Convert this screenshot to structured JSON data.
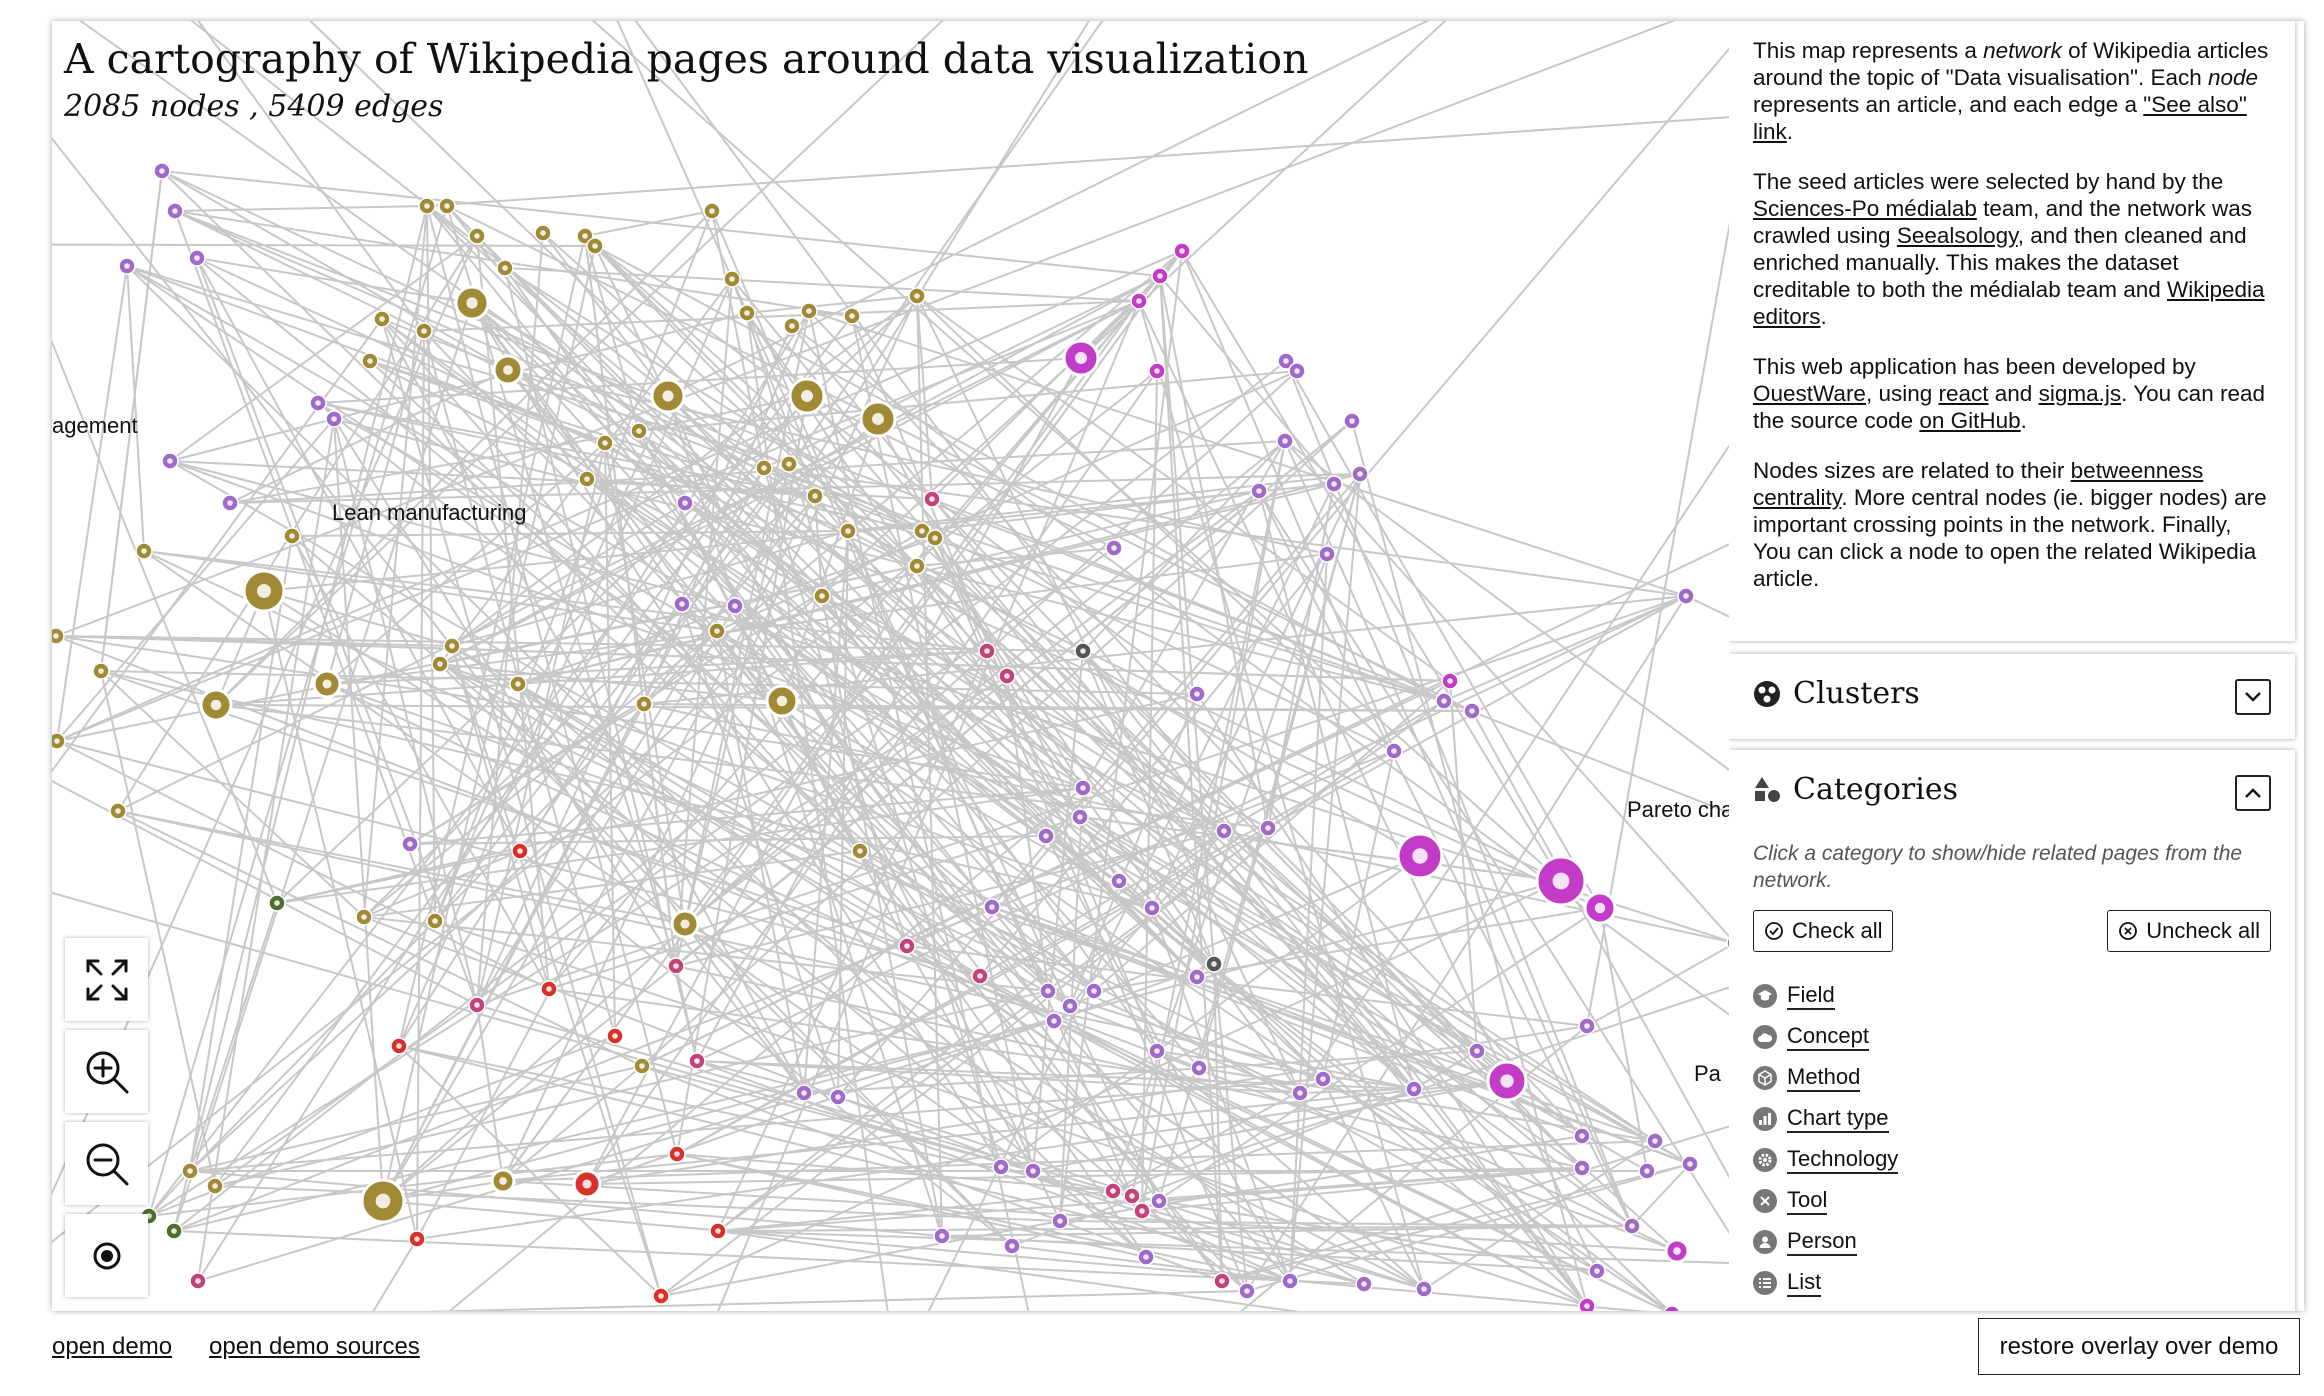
{
  "title": "A cartography of Wikipedia pages around data visualization",
  "subtitle": "2085 nodes , 5409 edges",
  "graph_labels": [
    {
      "id": "management",
      "text": "agement"
    },
    {
      "id": "lean",
      "text": "Lean manufacturing"
    },
    {
      "id": "pareto",
      "text": "Pareto cha"
    },
    {
      "id": "pa",
      "text": "Pa"
    }
  ],
  "colors": {
    "method": "#a08a35",
    "chart_type": "#c23cc8",
    "concept_pink": "#c2437a",
    "tool_red": "#d8312c",
    "person_green": "#4d6e2c",
    "misc_purple": "#a06ac8",
    "grey": "#555555",
    "edge": "#c8c8c8"
  },
  "controls": {
    "fullscreen": "fullscreen-icon",
    "zoom_in": "zoom-in-icon",
    "zoom_out": "zoom-out-icon",
    "reset": "target-icon"
  },
  "about": {
    "p1_a": "This map represents a ",
    "p1_b": "network",
    "p1_c": " of Wikipedia articles around the topic of \"Data visualisation\". Each ",
    "p1_d": "node",
    "p1_e": " represents an article, and each edge a ",
    "p1_link": "\"See also\" link",
    "p1_f": ".",
    "p2_a": "The seed articles were selected by hand by the ",
    "p2_link1": "Sciences-Po médialab",
    "p2_b": " team, and the network was crawled using ",
    "p2_link2": "Seealsology",
    "p2_c": ", and then cleaned and enriched manually. This makes the dataset creditable to both the médialab team and ",
    "p2_link3": "Wikipedia editors",
    "p2_d": ".",
    "p3_a": "This web application has been developed by ",
    "p3_link1": "OuestWare",
    "p3_b": ", using ",
    "p3_link2": "react",
    "p3_c": " and ",
    "p3_link3": "sigma.js",
    "p3_d": ". You can read the source code ",
    "p3_link4": "on GitHub",
    "p3_e": ".",
    "p4_a": "Nodes sizes are related to their ",
    "p4_link": "betweenness centrality",
    "p4_b": ". More central nodes (ie. bigger nodes) are important crossing points in the network. Finally, You can click a node to open the related Wikipedia article."
  },
  "clusters": {
    "title": "Clusters"
  },
  "categories": {
    "title": "Categories",
    "hint": "Click a category to show/hide related pages from the network.",
    "check_all": "Check all",
    "uncheck_all": "Uncheck all",
    "items": [
      {
        "label": "Field",
        "icon": "graduation-cap-icon"
      },
      {
        "label": "Concept",
        "icon": "cloud-icon"
      },
      {
        "label": "Method",
        "icon": "cube-icon"
      },
      {
        "label": "Chart type",
        "icon": "bar-chart-icon"
      },
      {
        "label": "Technology",
        "icon": "gear-icon"
      },
      {
        "label": "Tool",
        "icon": "wrench-icon"
      },
      {
        "label": "Person",
        "icon": "person-icon"
      },
      {
        "label": "List",
        "icon": "list-icon"
      }
    ]
  },
  "footer": {
    "open_demo": "open demo",
    "open_sources": "open demo sources",
    "restore": "restore overlay over demo"
  }
}
